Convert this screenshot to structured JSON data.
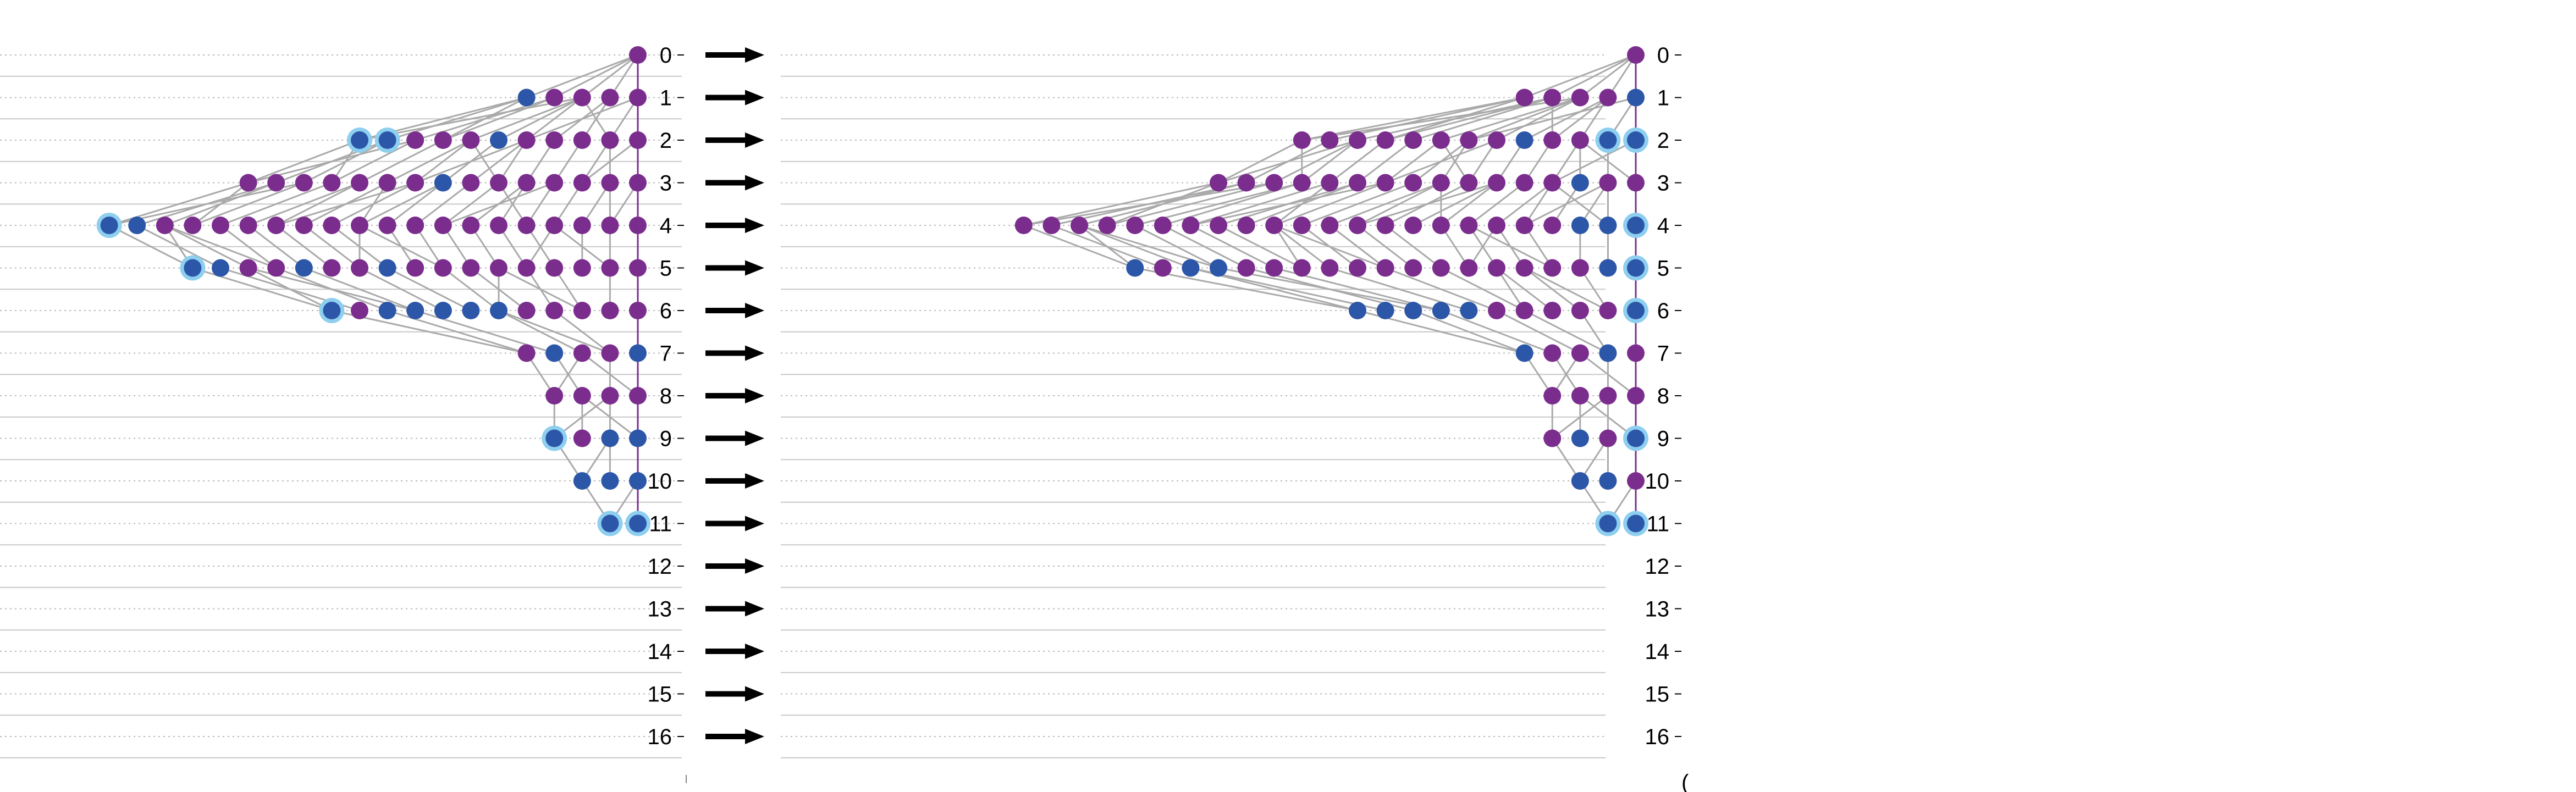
{
  "levels": [
    "0",
    "1",
    "2",
    "3",
    "4",
    "5",
    "6",
    "7",
    "8",
    "9",
    "10",
    "11",
    "12",
    "13",
    "14",
    "15",
    "16"
  ],
  "right_axis_stub": "(",
  "colors": {
    "purple_node": "#7B2D8E",
    "blue_node": "#2C56A8",
    "highlight_ring": "#8ECFF0",
    "edge": "#AAAAAA",
    "arrow": "#000000",
    "grid_solid": "#C8C8C8",
    "grid_dotted": "#B8B8B8"
  },
  "panels": {
    "left": {
      "rows": [
        {
          "level": 0,
          "nodes": [
            "p"
          ]
        },
        {
          "level": 1,
          "nodes": [
            "b",
            "p",
            "p",
            "p",
            "p"
          ]
        },
        {
          "level": 2,
          "nodes": [
            "B",
            "B",
            "p",
            "p",
            "p",
            "b",
            "p",
            "p",
            "p",
            "p",
            "p"
          ]
        },
        {
          "level": 3,
          "nodes": [
            "p",
            "p",
            "p",
            "p",
            "p",
            "p",
            "p",
            "b",
            "p",
            "p",
            "p",
            "p",
            "p",
            "p",
            "p"
          ]
        },
        {
          "level": 4,
          "nodes": [
            "B",
            "b",
            "p",
            "p",
            "p",
            "p",
            "p",
            "p",
            "p",
            "p",
            "p",
            "p",
            "p",
            "p",
            "p",
            "p",
            "p",
            "p",
            "p",
            "p"
          ]
        },
        {
          "level": 5,
          "nodes": [
            "B",
            "b",
            "p",
            "p",
            "b",
            "p",
            "p",
            "b",
            "p",
            "p",
            "p",
            "p",
            "p",
            "p",
            "p",
            "p",
            "p"
          ]
        },
        {
          "level": 6,
          "nodes": [
            "B",
            "p",
            "b",
            "b",
            "b",
            "b",
            "b",
            "p",
            "p",
            "p",
            "p",
            "p"
          ]
        },
        {
          "level": 7,
          "nodes": [
            "p",
            "b",
            "p",
            "p",
            "b"
          ]
        },
        {
          "level": 8,
          "nodes": [
            "p",
            "p",
            "p",
            "p"
          ]
        },
        {
          "level": 9,
          "nodes": [
            "B",
            "p",
            "b",
            "b"
          ]
        },
        {
          "level": 10,
          "nodes": [
            "b",
            "b",
            "b"
          ]
        },
        {
          "level": 11,
          "nodes": [
            "B",
            "B"
          ]
        }
      ]
    },
    "right": {
      "rows": [
        {
          "level": 0,
          "nodes": [
            "p"
          ]
        },
        {
          "level": 1,
          "nodes": [
            "p",
            "p",
            "p",
            "p",
            "b"
          ]
        },
        {
          "level": 2,
          "nodes": [
            "p",
            "p",
            "p",
            "p",
            "p",
            "p",
            "p",
            "p",
            "b",
            "p",
            "p",
            "B",
            "B"
          ]
        },
        {
          "level": 3,
          "nodes": [
            "p",
            "p",
            "p",
            "p",
            "p",
            "p",
            "p",
            "p",
            "p",
            "p",
            "p",
            "p",
            "p",
            "b",
            "p",
            "p"
          ]
        },
        {
          "level": 4,
          "nodes": [
            "p",
            "p",
            "p",
            "p",
            "p",
            "p",
            "p",
            "p",
            "p",
            "p",
            "p",
            "p",
            "p",
            "p",
            "p",
            "p",
            "p",
            "p",
            "p",
            "p",
            "b",
            "b",
            "B"
          ]
        },
        {
          "level": 5,
          "nodes": [
            "b",
            "p",
            "b",
            "b",
            "p",
            "p",
            "p",
            "p",
            "p",
            "p",
            "p",
            "p",
            "p",
            "p",
            "p",
            "p",
            "p",
            "b",
            "B"
          ]
        },
        {
          "level": 6,
          "nodes": [
            "b",
            "b",
            "b",
            "b",
            "b",
            "p",
            "p",
            "p",
            "p",
            "p",
            "B"
          ]
        },
        {
          "level": 7,
          "nodes": [
            "b",
            "p",
            "p",
            "b",
            "p"
          ]
        },
        {
          "level": 8,
          "nodes": [
            "p",
            "p",
            "p",
            "p"
          ]
        },
        {
          "level": 9,
          "nodes": [
            "p",
            "b",
            "p",
            "B"
          ]
        },
        {
          "level": 10,
          "nodes": [
            "b",
            "b",
            "p"
          ]
        },
        {
          "level": 11,
          "nodes": [
            "B",
            "B"
          ]
        }
      ]
    }
  }
}
